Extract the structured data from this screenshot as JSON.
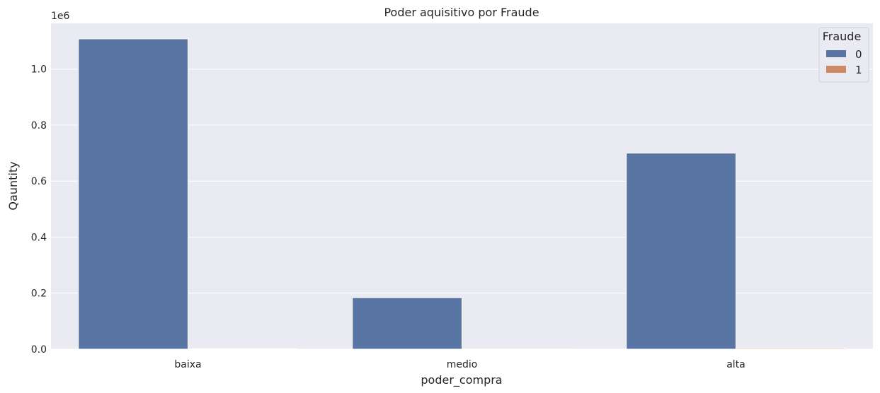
{
  "chart_data": {
    "type": "bar",
    "title": "Poder aquisitivo por Fraude",
    "xlabel": "poder_compra",
    "ylabel": "Qauntity",
    "offset_text": "1e6",
    "categories": [
      "baixa",
      "medio",
      "alta"
    ],
    "series": [
      {
        "name": "0",
        "color": "#5875a4",
        "values": [
          1108000,
          184000,
          700000
        ]
      },
      {
        "name": "1",
        "color": "#cc8963",
        "values": [
          1500,
          300,
          3500
        ]
      }
    ],
    "yticks": [
      0.0,
      0.2,
      0.4,
      0.6,
      0.8,
      1.0
    ],
    "ytick_labels": [
      "0.0",
      "0.2",
      "0.4",
      "0.6",
      "0.8",
      "1.0"
    ],
    "ylim": [
      0,
      1163400
    ],
    "legend": {
      "title": "Fraude",
      "position": "top-right"
    },
    "grid": true,
    "background": "#eaeaf2"
  }
}
